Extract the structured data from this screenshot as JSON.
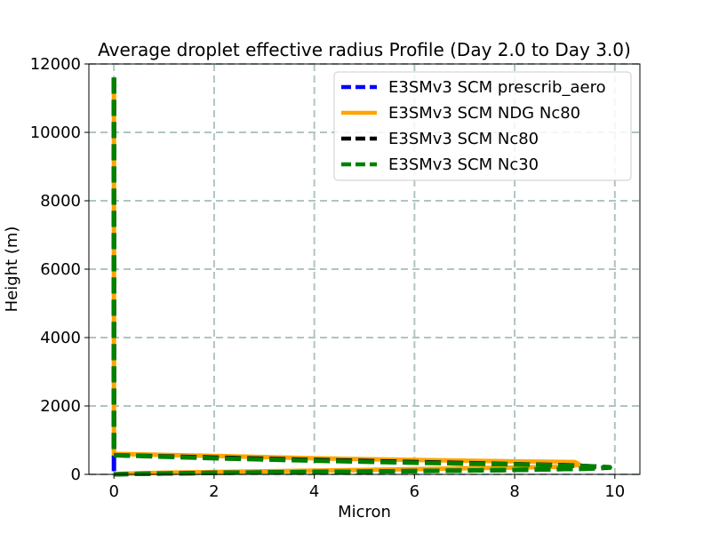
{
  "chart_data": {
    "type": "line",
    "title": "Average droplet effective radius Profile (Day 2.0 to Day 3.0)",
    "xlabel": "Micron",
    "ylabel": "Height (m)",
    "xlim": [
      -0.5,
      10.5
    ],
    "ylim": [
      0,
      12000
    ],
    "xticks": [
      0,
      2,
      4,
      6,
      8,
      10
    ],
    "yticks": [
      0,
      2000,
      4000,
      6000,
      8000,
      10000,
      12000
    ],
    "xtick_labels": [
      "0",
      "2",
      "4",
      "6",
      "8",
      "10"
    ],
    "ytick_labels": [
      "0",
      "2000",
      "4000",
      "6000",
      "8000",
      "10000",
      "12000"
    ],
    "grid": true,
    "legend_position": "top-right",
    "series": [
      {
        "name": "E3SMv3 SCM prescrib_aero",
        "color": "#0000ff",
        "dash": "dashed",
        "x": [
          0,
          0,
          0,
          0,
          0,
          0,
          0,
          0,
          0
        ],
        "y": [
          11600,
          10000,
          8000,
          6000,
          4000,
          2000,
          1000,
          600,
          0
        ]
      },
      {
        "name": "E3SMv3 SCM NDG Nc80",
        "color": "#ffa500",
        "dash": "solid",
        "x": [
          0,
          0,
          0,
          0,
          0,
          0,
          0,
          0,
          2,
          4,
          6,
          8,
          9.2,
          9.3,
          9.0,
          7.0,
          5.0,
          3.0,
          1.0,
          0.2,
          0,
          0
        ],
        "y": [
          11600,
          10000,
          8000,
          6000,
          4000,
          2000,
          1000,
          600,
          540,
          470,
          420,
          380,
          360,
          280,
          220,
          180,
          130,
          90,
          50,
          20,
          0,
          0
        ]
      },
      {
        "name": "E3SMv3 SCM Nc80",
        "color": "#000000",
        "dash": "dashed",
        "x": [
          0,
          0,
          0,
          0,
          0,
          0,
          0,
          0,
          2,
          4,
          6,
          8,
          9.0,
          9.6,
          9.9,
          9.5,
          8.0,
          6.0,
          4.0,
          2.0,
          0.5,
          0
        ],
        "y": [
          11600,
          10000,
          8000,
          6000,
          4000,
          2000,
          1000,
          560,
          490,
          420,
          360,
          300,
          270,
          230,
          200,
          170,
          130,
          95,
          70,
          45,
          15,
          0
        ]
      },
      {
        "name": "E3SMv3 SCM Nc30",
        "color": "#008000",
        "dash": "dashed",
        "x": [
          0,
          0,
          0,
          0,
          0,
          0,
          0,
          0,
          2,
          4,
          6,
          8,
          9.0,
          9.6,
          9.9,
          9.5,
          8.0,
          6.0,
          4.0,
          2.0,
          0.5,
          0
        ],
        "y": [
          11600,
          10000,
          8000,
          6000,
          4000,
          2000,
          1000,
          560,
          470,
          400,
          340,
          290,
          260,
          230,
          210,
          170,
          130,
          95,
          70,
          45,
          15,
          0
        ]
      }
    ]
  }
}
